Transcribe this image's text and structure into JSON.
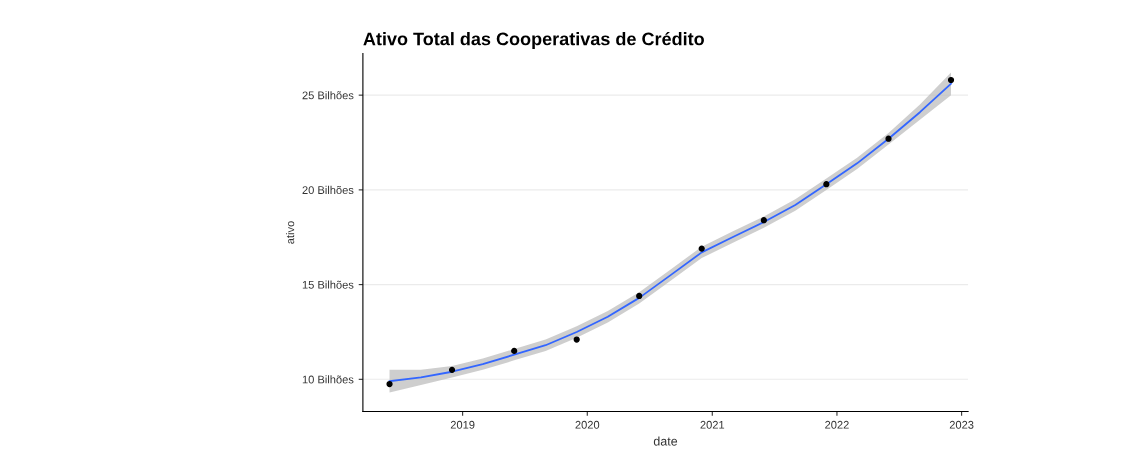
{
  "chart_data": {
    "type": "scatter",
    "title": "Ativo Total das Cooperativas de Crédito",
    "xlabel": "date",
    "ylabel": "ativo",
    "x": [
      "2018-06-01",
      "2018-12-01",
      "2019-06-01",
      "2019-12-01",
      "2020-06-01",
      "2020-12-01",
      "2021-06-01",
      "2021-12-01",
      "2022-06-01",
      "2022-12-01"
    ],
    "series": [
      {
        "color": "#000000",
        "marker": "circle",
        "values": [
          9.75,
          10.5,
          11.5,
          12.1,
          14.4,
          16.9,
          18.4,
          20.3,
          22.7,
          25.8
        ]
      },
      {
        "type": "line",
        "color": "#3366ff",
        "marker": "none",
        "line_style": "solid",
        "x": [
          "2018-06-01",
          "2018-09-01",
          "2018-12-01",
          "2019-03-01",
          "2019-06-01",
          "2019-09-01",
          "2019-12-01",
          "2020-03-01",
          "2020-06-01",
          "2020-09-01",
          "2020-12-01",
          "2021-03-01",
          "2021-06-01",
          "2021-09-01",
          "2021-12-01",
          "2022-03-01",
          "2022-06-01",
          "2022-09-01",
          "2022-12-01"
        ],
        "values": [
          9.9,
          10.1,
          10.4,
          10.8,
          11.3,
          11.8,
          12.5,
          13.3,
          14.3,
          15.5,
          16.7,
          17.5,
          18.3,
          19.2,
          20.3,
          21.4,
          22.7,
          24.1,
          25.6
        ],
        "lower": [
          9.3,
          9.7,
          10.1,
          10.5,
          11.0,
          11.5,
          12.2,
          13.0,
          14.0,
          15.2,
          16.4,
          17.2,
          18.0,
          18.9,
          20.0,
          21.1,
          22.4,
          23.7,
          25.0
        ],
        "upper": [
          10.5,
          10.5,
          10.7,
          11.1,
          11.6,
          12.1,
          12.8,
          13.6,
          14.6,
          15.8,
          17.0,
          17.8,
          18.6,
          19.5,
          20.6,
          21.7,
          23.0,
          24.5,
          26.2
        ]
      }
    ],
    "xlim": [
      "2018-03-15",
      "2023-01-20"
    ],
    "xticks": [
      {
        "value": "2019-01-01",
        "label": "2019"
      },
      {
        "value": "2020-01-01",
        "label": "2020"
      },
      {
        "value": "2021-01-01",
        "label": "2021"
      },
      {
        "value": "2022-01-01",
        "label": "2022"
      },
      {
        "value": "2023-01-01",
        "label": "2023"
      }
    ],
    "ylim": [
      8.3,
      27.2
    ],
    "yticks": [
      {
        "value": 10,
        "label": "10 Bilhões"
      },
      {
        "value": 15,
        "label": "15 Bilhões"
      },
      {
        "value": 20,
        "label": "20 Bilhões"
      },
      {
        "value": 25,
        "label": "25 Bilhões"
      }
    ],
    "grid": "y",
    "legend": false
  }
}
